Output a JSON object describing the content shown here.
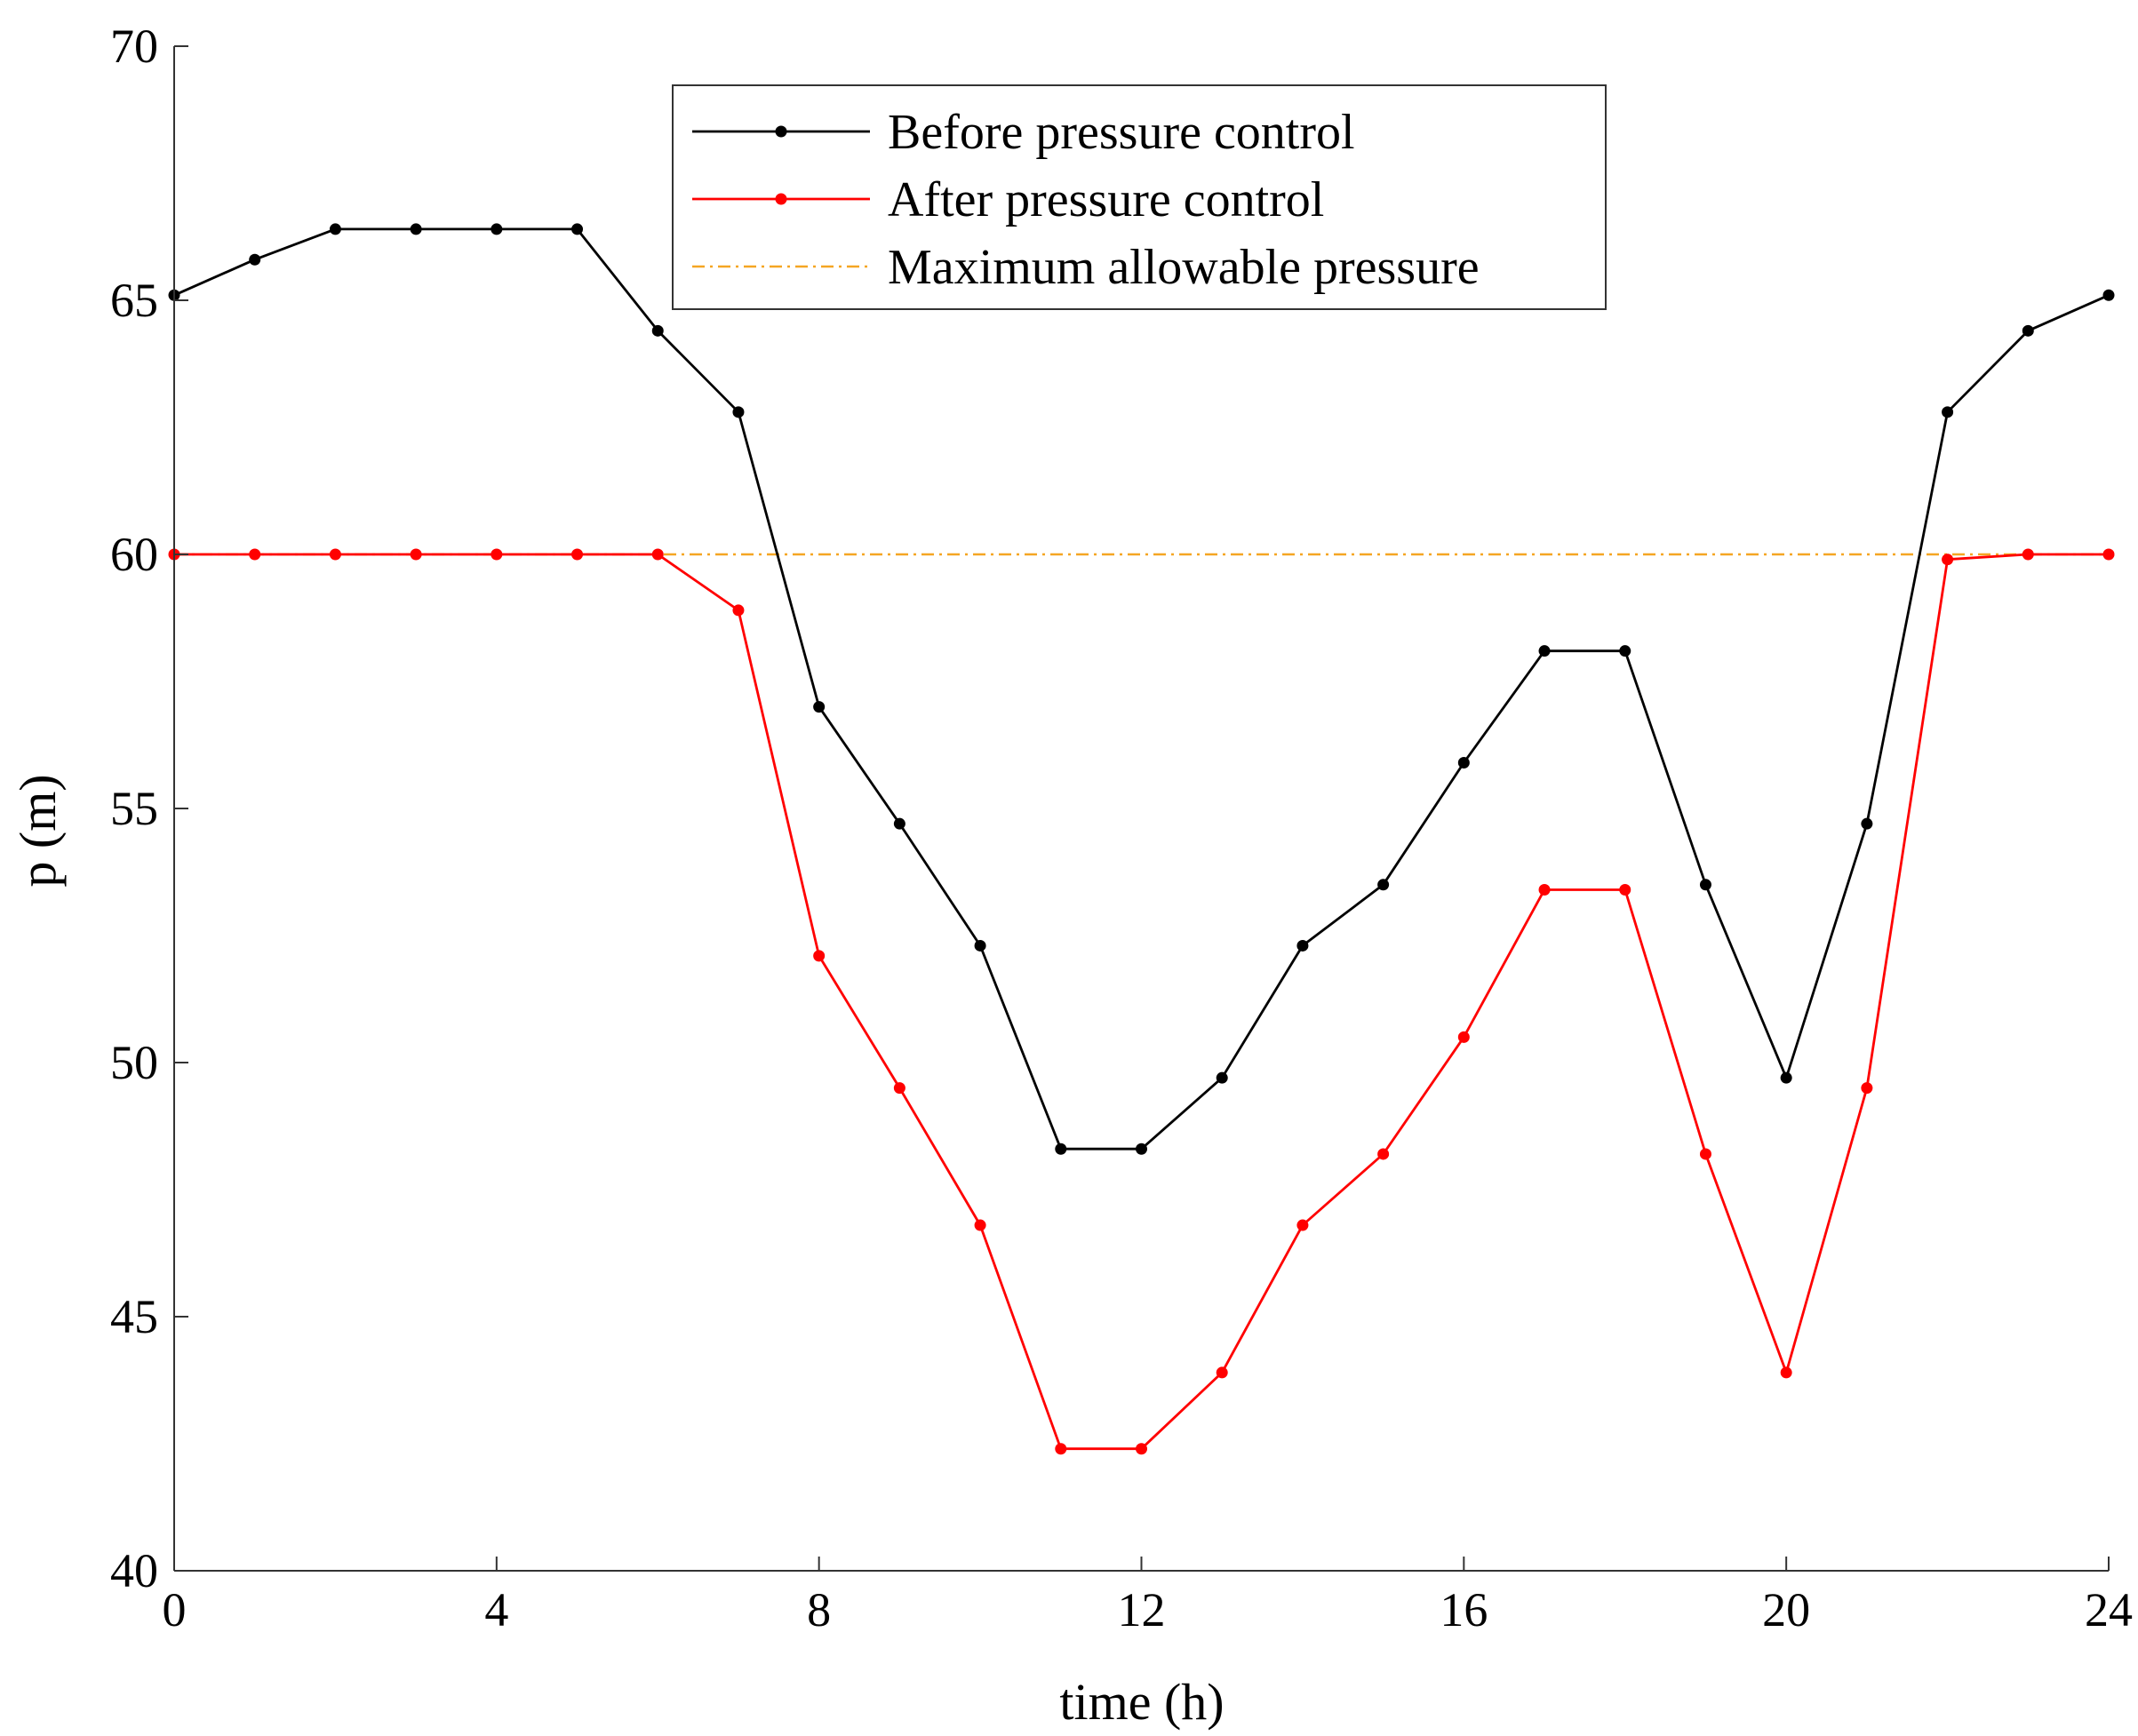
{
  "chart_data": {
    "type": "line",
    "xlabel": "time (h)",
    "ylabel": "p (m)",
    "xlim": [
      0,
      24
    ],
    "ylim": [
      40,
      70
    ],
    "xticks": [
      0,
      4,
      8,
      12,
      16,
      20,
      24
    ],
    "yticks": [
      40,
      45,
      50,
      55,
      60,
      65,
      70
    ],
    "grid": false,
    "legend_position": "top-center",
    "x": [
      0,
      1,
      2,
      3,
      4,
      5,
      6,
      7,
      8,
      9,
      10,
      11,
      12,
      13,
      14,
      15,
      16,
      17,
      18,
      19,
      20,
      21,
      22,
      23,
      24
    ],
    "series": [
      {
        "name": "Before pressure control",
        "color": "#000000",
        "style": "solid-dot",
        "values": [
          65.1,
          65.8,
          66.4,
          66.4,
          66.4,
          66.4,
          64.4,
          62.8,
          57.0,
          54.7,
          52.3,
          48.3,
          48.3,
          49.7,
          52.3,
          53.5,
          55.9,
          58.1,
          58.1,
          53.5,
          49.7,
          54.7,
          62.8,
          64.4,
          65.1
        ]
      },
      {
        "name": "After pressure control",
        "color": "#ff0000",
        "style": "solid-dot",
        "values": [
          60.0,
          60.0,
          60.0,
          60.0,
          60.0,
          60.0,
          60.0,
          58.9,
          52.1,
          49.5,
          46.8,
          42.4,
          42.4,
          43.9,
          46.8,
          48.2,
          50.5,
          53.4,
          53.4,
          48.2,
          43.9,
          49.5,
          59.9,
          60.0,
          60.0
        ]
      },
      {
        "name": "Maximum allowable pressure",
        "color": "#f5a623",
        "style": "dash-dot",
        "values": [
          60,
          60,
          60,
          60,
          60,
          60,
          60,
          60,
          60,
          60,
          60,
          60,
          60,
          60,
          60,
          60,
          60,
          60,
          60,
          60,
          60,
          60,
          60,
          60,
          60
        ]
      }
    ]
  }
}
